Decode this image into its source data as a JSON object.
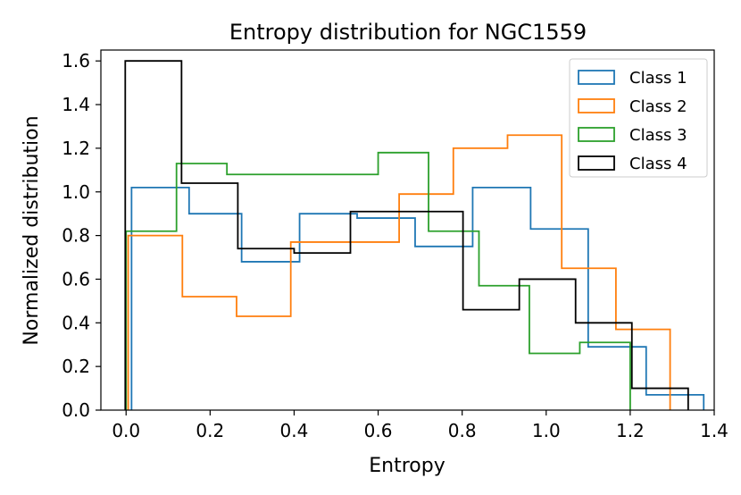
{
  "chart_data": {
    "type": "histogram-step",
    "title": "Entropy distribution for NGC1559",
    "xlabel": "Entropy",
    "ylabel": "Normalized distribution",
    "xlim": [
      -0.06,
      1.4
    ],
    "ylim": [
      0.0,
      1.65
    ],
    "xticks": [
      0.0,
      0.2,
      0.4,
      0.6,
      0.8,
      1.0,
      1.2,
      1.4
    ],
    "yticks": [
      0.0,
      0.2,
      0.4,
      0.6,
      0.8,
      1.0,
      1.2,
      1.4,
      1.6
    ],
    "xtick_labels": [
      "0.0",
      "0.2",
      "0.4",
      "0.6",
      "0.8",
      "1.0",
      "1.2",
      "1.4"
    ],
    "ytick_labels": [
      "0.0",
      "0.2",
      "0.4",
      "0.6",
      "0.8",
      "1.0",
      "1.2",
      "1.4",
      "1.6"
    ],
    "legend_position": "top-right",
    "series": [
      {
        "name": "Class 1",
        "color": "#1f77b4",
        "edges": [
          0.013,
          0.15,
          0.275,
          0.413,
          0.55,
          0.688,
          0.825,
          0.963,
          1.1,
          1.238,
          1.375
        ],
        "values": [
          1.02,
          0.9,
          0.68,
          0.9,
          0.88,
          0.75,
          1.02,
          0.83,
          0.29,
          0.07
        ]
      },
      {
        "name": "Class 2",
        "color": "#ff7f0e",
        "edges": [
          0.005,
          0.134,
          0.263,
          0.392,
          0.521,
          0.65,
          0.779,
          0.908,
          1.037,
          1.166,
          1.295
        ],
        "values": [
          0.8,
          0.52,
          0.43,
          0.77,
          0.77,
          0.99,
          1.2,
          1.26,
          0.65,
          0.37
        ]
      },
      {
        "name": "Class 3",
        "color": "#2ca02c",
        "edges": [
          0.0,
          0.12,
          0.24,
          0.36,
          0.48,
          0.6,
          0.72,
          0.84,
          0.96,
          1.08,
          1.2
        ],
        "values": [
          0.82,
          1.13,
          1.08,
          1.08,
          1.08,
          1.18,
          0.82,
          0.57,
          0.26,
          0.31
        ]
      },
      {
        "name": "Class 4",
        "color": "#000000",
        "edges": [
          -0.002,
          0.132,
          0.266,
          0.4,
          0.534,
          0.668,
          0.802,
          0.936,
          1.07,
          1.204,
          1.338
        ],
        "values": [
          1.6,
          1.04,
          0.74,
          0.72,
          0.91,
          0.91,
          0.46,
          0.6,
          0.4,
          0.1
        ]
      }
    ]
  }
}
